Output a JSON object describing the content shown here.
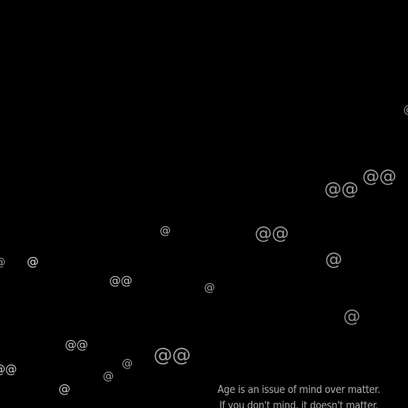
{
  "screensaver": {
    "symbols": [
      {
        "text": "@@",
        "color": "#9a9a9a"
      },
      {
        "text": "@@",
        "color": "#9a9a9a"
      },
      {
        "text": "@@",
        "color": "#9a9a9a"
      },
      {
        "text": "@",
        "color": "#9a9a9a"
      },
      {
        "text": "@",
        "color": "#b4b4b4"
      },
      {
        "text": "@",
        "color": "#9a9a9a"
      },
      {
        "text": "@",
        "color": "#dddddd"
      },
      {
        "text": "@@",
        "color": "#bdbdbd"
      },
      {
        "text": "@",
        "color": "#a0a0a0"
      },
      {
        "text": "@",
        "color": "#8a8a8a"
      },
      {
        "text": "@@",
        "color": "#bdbdbd"
      },
      {
        "text": "@@",
        "color": "#a0a0a0"
      },
      {
        "text": "@",
        "color": "#a0a0a0"
      },
      {
        "text": "@",
        "color": "#a0a0a0"
      },
      {
        "text": "@@",
        "color": "#c8c8c8"
      },
      {
        "text": "@",
        "color": "#c8c8c8"
      },
      {
        "text": "@",
        "color": "#9a9a9a"
      }
    ],
    "quote": {
      "line1": "Age is an issue of mind over matter.",
      "line2": "If you don't mind, it doesn't matter."
    }
  }
}
